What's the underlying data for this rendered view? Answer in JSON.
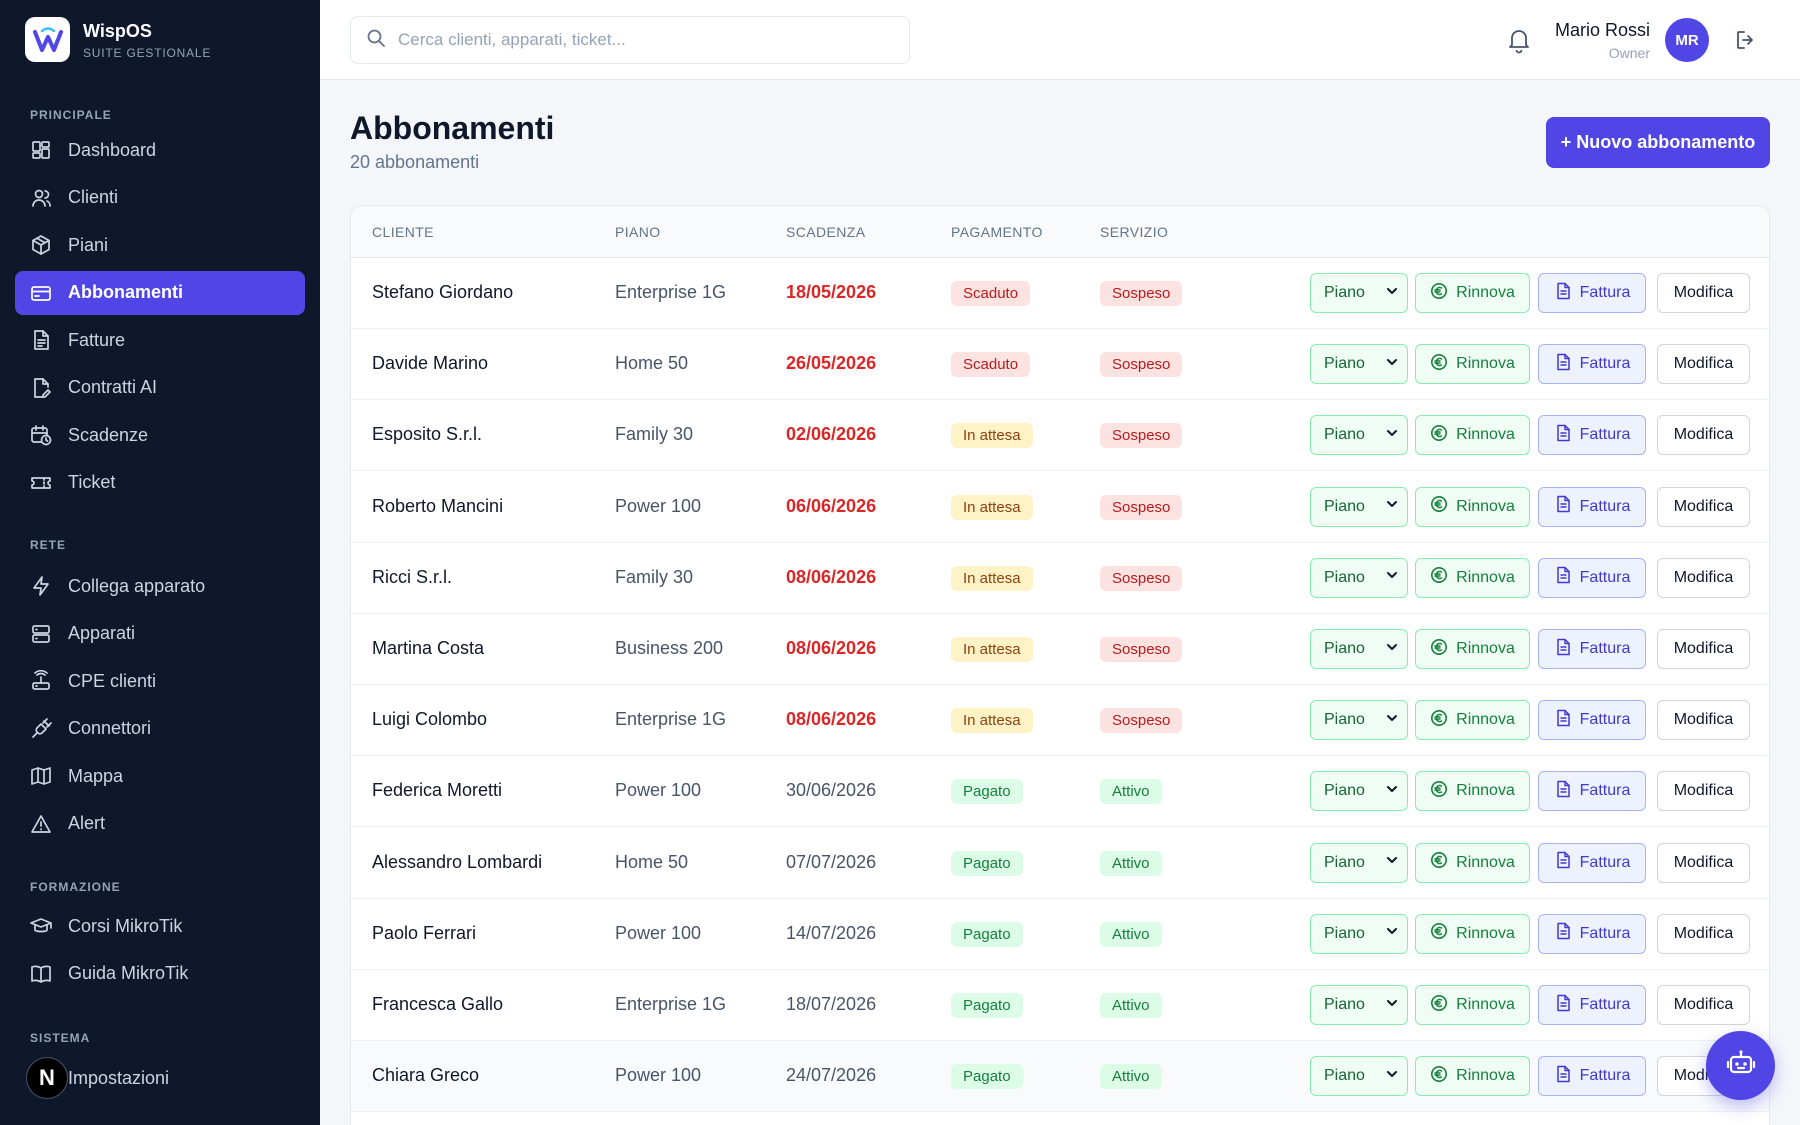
{
  "brand": {
    "name": "WispOS",
    "subtitle": "SUITE GESTIONALE"
  },
  "sidebar": {
    "sections": [
      {
        "label": "PRINCIPALE",
        "items": [
          {
            "label": "Dashboard",
            "icon": "dashboard-icon"
          },
          {
            "label": "Clienti",
            "icon": "users-icon"
          },
          {
            "label": "Piani",
            "icon": "package-icon"
          },
          {
            "label": "Abbonamenti",
            "icon": "credit-card-icon",
            "active": true
          },
          {
            "label": "Fatture",
            "icon": "document-icon"
          },
          {
            "label": "Contratti AI",
            "icon": "document-edit-icon"
          },
          {
            "label": "Scadenze",
            "icon": "calendar-clock-icon"
          },
          {
            "label": "Ticket",
            "icon": "ticket-icon"
          }
        ]
      },
      {
        "label": "RETE",
        "items": [
          {
            "label": "Collega apparato",
            "icon": "bolt-icon"
          },
          {
            "label": "Apparati",
            "icon": "server-icon"
          },
          {
            "label": "CPE clienti",
            "icon": "router-icon"
          },
          {
            "label": "Connettori",
            "icon": "plug-icon"
          },
          {
            "label": "Mappa",
            "icon": "map-icon"
          },
          {
            "label": "Alert",
            "icon": "alert-triangle-icon"
          }
        ]
      },
      {
        "label": "FORMAZIONE",
        "items": [
          {
            "label": "Corsi MikroTik",
            "icon": "graduation-cap-icon"
          },
          {
            "label": "Guida MikroTik",
            "icon": "book-icon"
          }
        ]
      },
      {
        "label": "SISTEMA",
        "items": [
          {
            "label": "Impostazioni",
            "icon": "settings-icon"
          }
        ]
      }
    ]
  },
  "topbar": {
    "search_placeholder": "Cerca clienti, apparati, ticket...",
    "user_name": "Mario Rossi",
    "user_role": "Owner",
    "avatar_initials": "MR"
  },
  "page": {
    "title": "Abbonamenti",
    "subtitle": "20 abbonamenti",
    "new_button": "+ Nuovo abbonamento"
  },
  "table": {
    "columns": [
      "CLIENTE",
      "PIANO",
      "SCADENZA",
      "PAGAMENTO",
      "SERVIZIO"
    ],
    "actions": {
      "plan": "Piano",
      "renew": "Rinnova",
      "invoice": "Fattura",
      "edit": "Modifica"
    },
    "rows": [
      {
        "client": "Stefano Giordano",
        "plan": "Enterprise 1G",
        "expiry": "18/05/2026",
        "overdue": true,
        "payment": "Scaduto",
        "service": "Sospeso"
      },
      {
        "client": "Davide Marino",
        "plan": "Home 50",
        "expiry": "26/05/2026",
        "overdue": true,
        "payment": "Scaduto",
        "service": "Sospeso"
      },
      {
        "client": "Esposito S.r.l.",
        "plan": "Family 30",
        "expiry": "02/06/2026",
        "overdue": true,
        "payment": "In attesa",
        "service": "Sospeso"
      },
      {
        "client": "Roberto Mancini",
        "plan": "Power 100",
        "expiry": "06/06/2026",
        "overdue": true,
        "payment": "In attesa",
        "service": "Sospeso"
      },
      {
        "client": "Ricci S.r.l.",
        "plan": "Family 30",
        "expiry": "08/06/2026",
        "overdue": true,
        "payment": "In attesa",
        "service": "Sospeso"
      },
      {
        "client": "Martina Costa",
        "plan": "Business 200",
        "expiry": "08/06/2026",
        "overdue": true,
        "payment": "In attesa",
        "service": "Sospeso"
      },
      {
        "client": "Luigi Colombo",
        "plan": "Enterprise 1G",
        "expiry": "08/06/2026",
        "overdue": true,
        "payment": "In attesa",
        "service": "Sospeso"
      },
      {
        "client": "Federica Moretti",
        "plan": "Power 100",
        "expiry": "30/06/2026",
        "overdue": false,
        "payment": "Pagato",
        "service": "Attivo"
      },
      {
        "client": "Alessandro Lombardi",
        "plan": "Home 50",
        "expiry": "07/07/2026",
        "overdue": false,
        "payment": "Pagato",
        "service": "Attivo"
      },
      {
        "client": "Paolo Ferrari",
        "plan": "Power 100",
        "expiry": "14/07/2026",
        "overdue": false,
        "payment": "Pagato",
        "service": "Attivo"
      },
      {
        "client": "Francesca Gallo",
        "plan": "Enterprise 1G",
        "expiry": "18/07/2026",
        "overdue": false,
        "payment": "Pagato",
        "service": "Attivo"
      },
      {
        "client": "Chiara Greco",
        "plan": "Power 100",
        "expiry": "24/07/2026",
        "overdue": false,
        "payment": "Pagato",
        "service": "Attivo"
      }
    ]
  },
  "overlay": {
    "next_badge": "N"
  },
  "colors": {
    "accent": "#4f46e5",
    "sidebar_bg": "#0f172a",
    "danger": "#dc2626",
    "success": "#15803d",
    "warning": "#92400e"
  }
}
